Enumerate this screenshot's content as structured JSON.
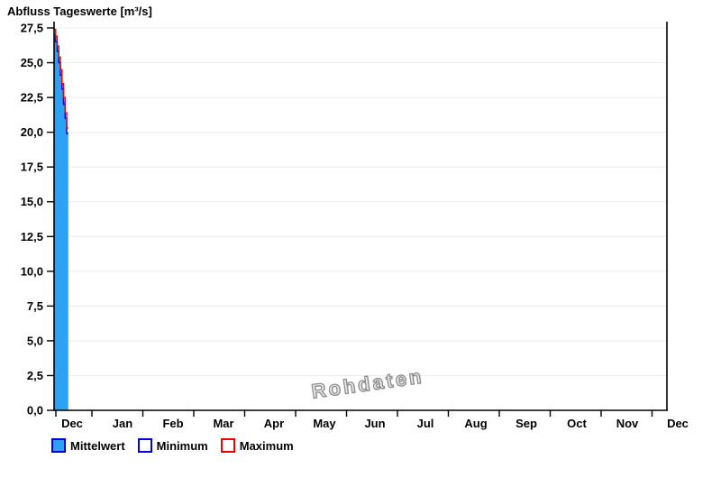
{
  "chart_data": {
    "type": "area",
    "title": "Abfluss Tageswerte [m³/s]",
    "watermark": "Rohdaten",
    "legend_position": "bottom-left",
    "grid": "horizontal-only",
    "ylim": [
      0,
      27.5
    ],
    "ytick_step": 2.5,
    "y_tick_labels": [
      "0,0",
      "2,5",
      "5,0",
      "7,5",
      "10,0",
      "12,5",
      "15,0",
      "17,5",
      "20,0",
      "22,5",
      "25,0",
      "27,5"
    ],
    "x_tick_labels": [
      "Dec",
      "Jan",
      "Feb",
      "Mar",
      "Apr",
      "May",
      "Jun",
      "Jul",
      "Aug",
      "Sep",
      "Oct",
      "Nov",
      "Dec"
    ],
    "data_days": 9,
    "series": [
      {
        "name": "Mittelwert",
        "style": "area",
        "color": "#2BA2F5",
        "edge": "#0000D8",
        "values": [
          27.1,
          26.6,
          25.9,
          25.1,
          24.2,
          23.2,
          22.2,
          21.1,
          20.0
        ]
      },
      {
        "name": "Minimum",
        "style": "line",
        "color": "#0000E0",
        "values": [
          27.0,
          26.5,
          25.8,
          25.0,
          24.1,
          23.1,
          22.0,
          21.0,
          19.9
        ]
      },
      {
        "name": "Maximum",
        "style": "line",
        "color": "#F00000",
        "values": [
          27.4,
          26.9,
          26.2,
          25.4,
          24.5,
          23.5,
          22.5,
          21.4,
          20.3
        ]
      }
    ],
    "axis_color": "#000000",
    "grid_color": "#ECECEC",
    "watermark_color": "#8C8C8C"
  }
}
